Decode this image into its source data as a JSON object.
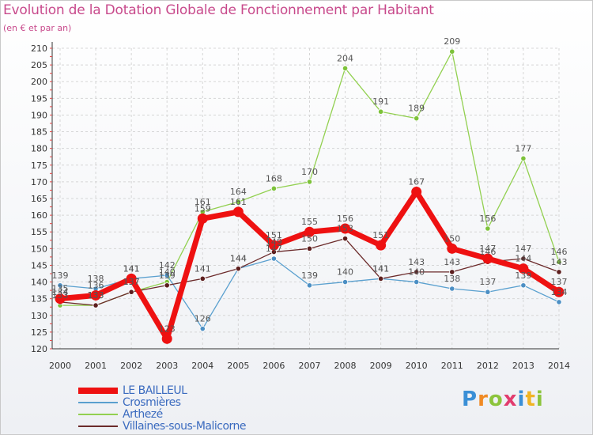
{
  "header": {
    "title": "Evolution de la Dotation Globale de Fonctionnement par Habitant",
    "subtitle": "(en € et par an)"
  },
  "logo": {
    "text": "Proxiti",
    "letters": [
      "P",
      "r",
      "o",
      "x",
      "i",
      "t",
      "i"
    ],
    "colors": [
      "#3a8fd6",
      "#f08a24",
      "#8cc43c",
      "#e23c6e",
      "#3a8fd6",
      "#f0b424",
      "#8cc43c"
    ]
  },
  "chart_data": {
    "type": "line",
    "title": "Evolution de la Dotation Globale de Fonctionnement par Habitant",
    "subtitle": "(en € et par an)",
    "x": [
      "2000",
      "2001",
      "2002",
      "2003",
      "2004",
      "2005",
      "2006",
      "2007",
      "2008",
      "2009",
      "2010",
      "2011",
      "2012",
      "2013",
      "2014"
    ],
    "ylim": [
      120,
      210
    ],
    "yticks": [
      120,
      125,
      130,
      135,
      140,
      145,
      150,
      155,
      160,
      165,
      170,
      175,
      180,
      185,
      190,
      195,
      200,
      205,
      210
    ],
    "grid": true,
    "legend_position": "bottom-left",
    "series": [
      {
        "name": "LE BAILLEUL",
        "color": "#ee1111",
        "values": [
          135,
          136,
          141,
          123,
          159,
          161,
          151,
          155,
          156,
          151,
          167,
          150,
          147,
          144,
          137
        ]
      },
      {
        "name": "Crosmières",
        "color": "#5aa0cf",
        "values": [
          139,
          138,
          141,
          142,
          126,
          144,
          147,
          139,
          140,
          141,
          140,
          138,
          137,
          139,
          134
        ]
      },
      {
        "name": "Arthezé",
        "color": "#92d050",
        "values": [
          133,
          133,
          137,
          140,
          161,
          164,
          168,
          170,
          204,
          191,
          189,
          209,
          156,
          177,
          146
        ]
      },
      {
        "name": "Villaines-sous-Malicorne",
        "color": "#6b2a2a",
        "values": [
          134,
          133,
          137,
          139,
          141,
          144,
          149,
          150,
          153,
          141,
          143,
          143,
          146,
          147,
          143
        ]
      }
    ]
  }
}
